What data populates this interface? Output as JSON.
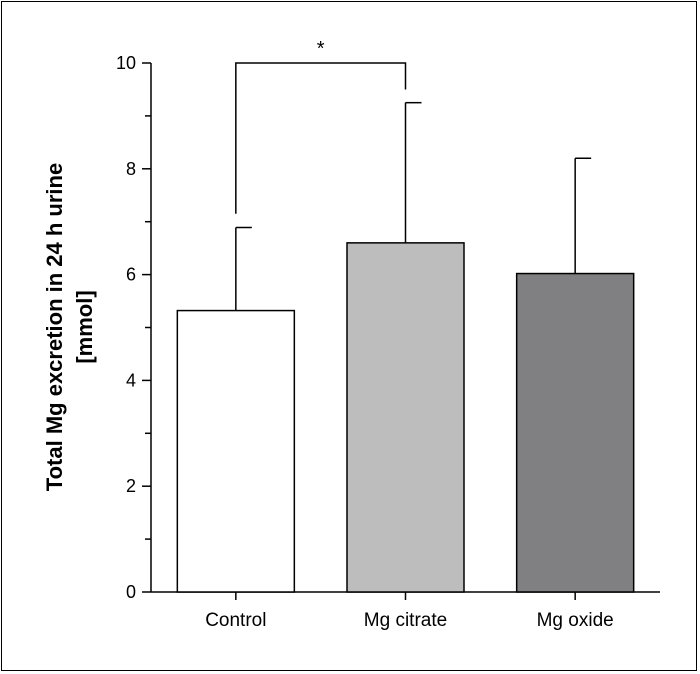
{
  "chart_data": {
    "type": "bar",
    "title": "",
    "xlabel": "",
    "ylabel_line1": "Total Mg excretion in 24 h urine",
    "ylabel_line2": "[mmol]",
    "ylim": [
      0,
      10
    ],
    "yticks": [
      "0",
      "2",
      "4",
      "6",
      "8",
      "10"
    ],
    "categories": [
      "Control",
      "Mg citrate",
      "Mg oxide"
    ],
    "values": [
      5.32,
      6.6,
      6.02
    ],
    "errors": [
      1.57,
      2.65,
      2.18
    ],
    "bar_colors": [
      "#ffffff",
      "#bdbdbd",
      "#808083"
    ],
    "grid": false,
    "significance": {
      "between": [
        "Control",
        "Mg citrate"
      ],
      "label": "*",
      "bracket_top": 10.0,
      "left_drop_to": 7.15,
      "right_drop_to": 9.5
    }
  }
}
